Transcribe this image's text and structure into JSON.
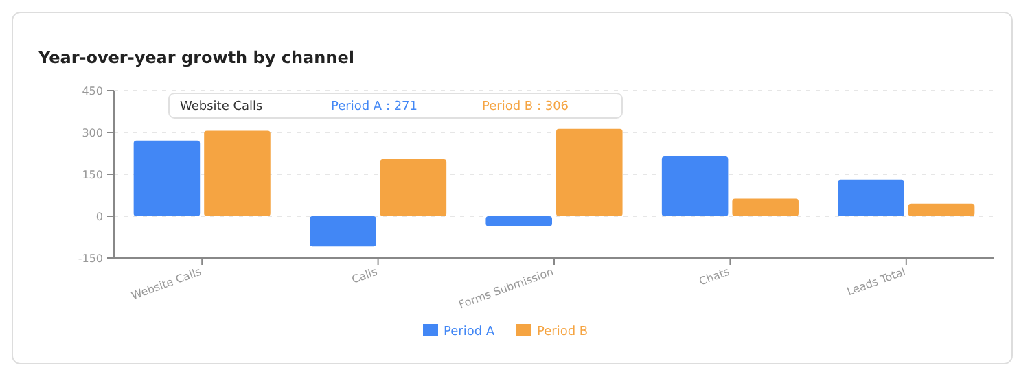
{
  "chart_data": {
    "type": "bar",
    "title": "Year-over-year growth by channel",
    "categories": [
      "Website Calls",
      "Calls",
      "Forms Submission",
      "Chats",
      "Leads Total"
    ],
    "series": [
      {
        "name": "Period A",
        "color": "#4287f5",
        "values": [
          271,
          -109,
          -36,
          214,
          131
        ]
      },
      {
        "name": "Period B",
        "color": "#f5a442",
        "values": [
          306,
          204,
          313,
          63,
          45
        ]
      }
    ],
    "ylim": [
      -150,
      450
    ],
    "yticks": [
      -150,
      0,
      150,
      300,
      450
    ],
    "grid": "y",
    "legend": "bottom",
    "annotations": [
      "Website Calls",
      "Period A : 271",
      "Period B : 306"
    ]
  }
}
